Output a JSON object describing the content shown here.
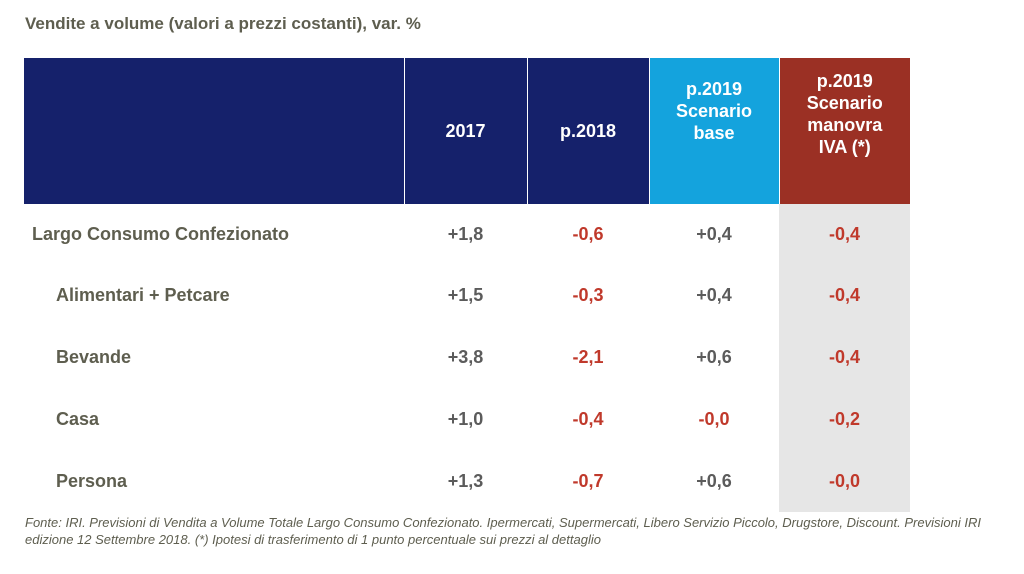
{
  "title": "Vendite a volume (valori a prezzi costanti), var. %",
  "headers": {
    "label": "",
    "y2017": "2017",
    "p2018": "p.2018",
    "base_line1": "p.2019",
    "base_line2": "Scenario",
    "base_line3": "base",
    "iva_line1": "p.2019",
    "iva_line2": "Scenario",
    "iva_line3": "manovra",
    "iva_line4": "IVA (*)"
  },
  "rows": [
    {
      "label": "Largo Consumo  Confezionato",
      "y2017": "+1,8",
      "p2018": "-0,6",
      "base": "+0,4",
      "iva": "-0,4"
    },
    {
      "label": "Alimentari + Petcare",
      "y2017": "+1,5",
      "p2018": "-0,3",
      "base": "+0,4",
      "iva": "-0,4"
    },
    {
      "label": "Bevande",
      "y2017": "+3,8",
      "p2018": "-2,1",
      "base": "+0,6",
      "iva": "-0,4"
    },
    {
      "label": "Casa",
      "y2017": "+1,0",
      "p2018": "-0,4",
      "base": "-0,0",
      "iva": "-0,2"
    },
    {
      "label": "Persona",
      "y2017": "+1,3",
      "p2018": "-0,7",
      "base": "+0,6",
      "iva": "-0,0"
    }
  ],
  "footnote": "Fonte: IRI. Previsioni di Vendita a Volume Totale Largo Consumo Confezionato. Ipermercati, Supermercati, Libero Servizio Piccolo, Drugstore, Discount. Previsioni IRI edizione 12 Settembre 2018. (*) Ipotesi di trasferimento  di 1 punto percentuale sui prezzi al dettaglio",
  "colors": {
    "header_navy": "#15216b",
    "header_cyan": "#14a3dd",
    "header_red": "#9b3024",
    "negative": "#c0392b",
    "iva_column_bg": "#e6e6e6"
  }
}
